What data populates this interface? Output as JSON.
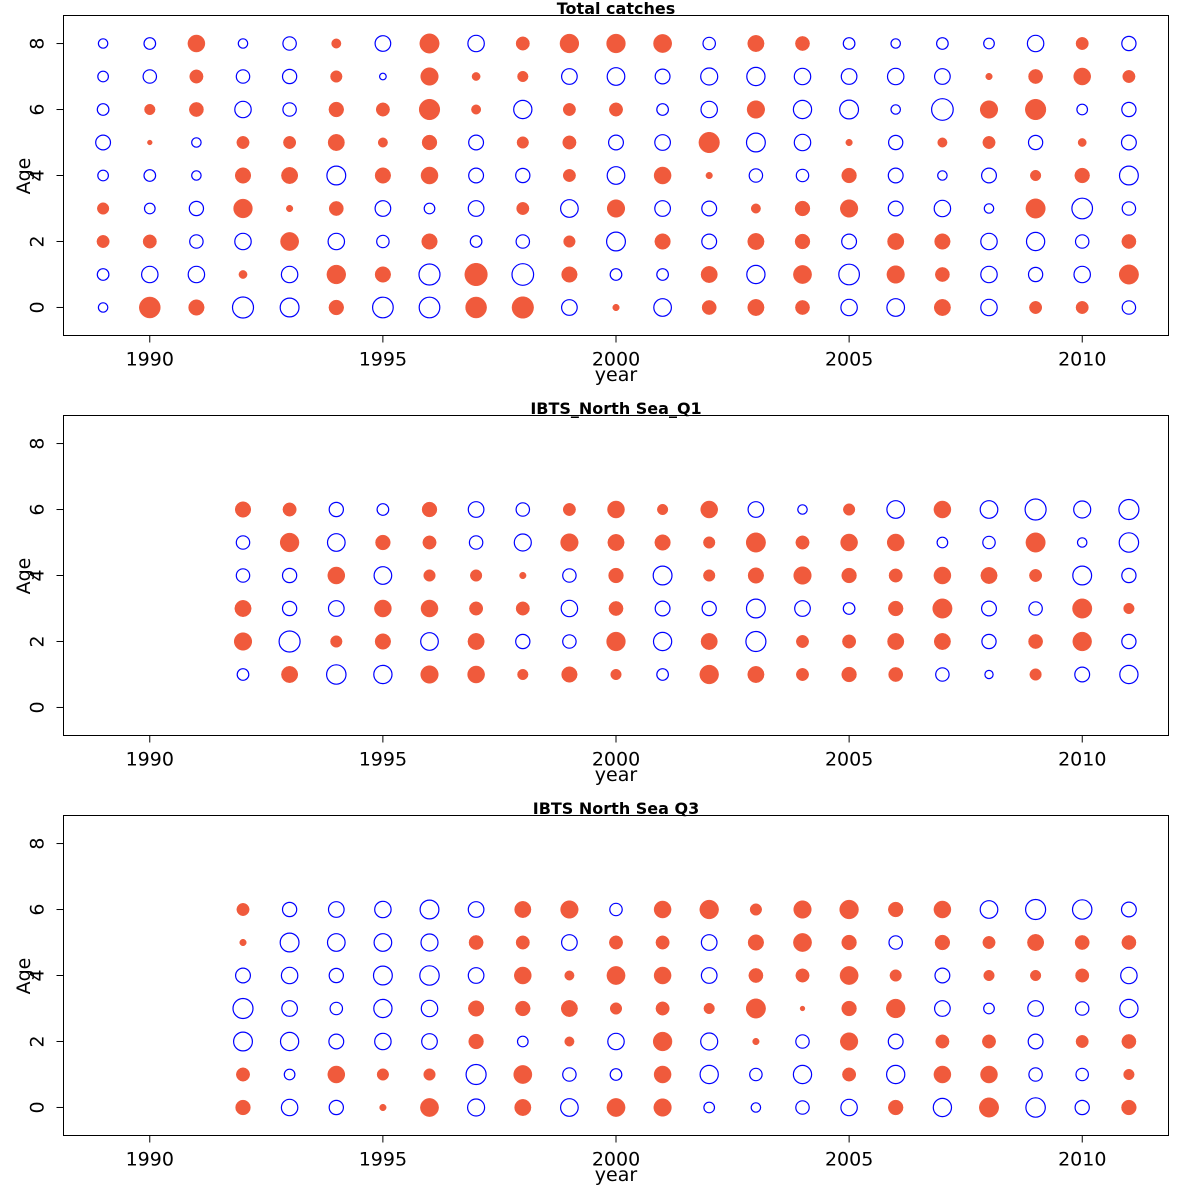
{
  "colors": {
    "positive": "#F05A3C",
    "negative": "#0000FF"
  },
  "chart_data": [
    {
      "type": "scatter",
      "title": "Total catches",
      "xlabel": "year",
      "ylabel": "Age",
      "xlim": [
        1988.15,
        2011.85
      ],
      "ylim": [
        -0.85,
        8.85
      ],
      "xticks": [
        1990,
        1995,
        2000,
        2005,
        2010
      ],
      "yticks": [
        0,
        2,
        4,
        6,
        8
      ],
      "x": [
        1989,
        1990,
        1991,
        1992,
        1993,
        1994,
        1995,
        1996,
        1997,
        1998,
        1999,
        2000,
        2001,
        2002,
        2003,
        2004,
        2005,
        2006,
        2007,
        2008,
        2009,
        2010,
        2011
      ],
      "ages": [
        0,
        1,
        2,
        3,
        4,
        5,
        6,
        7,
        8
      ],
      "residuals_by_age": [
        [
          -0.2,
          1.0,
          0.55,
          -1.0,
          -0.8,
          0.5,
          -0.95,
          -0.95,
          1.0,
          1.05,
          -0.55,
          0.1,
          -0.7,
          0.45,
          0.6,
          0.45,
          -0.6,
          -0.7,
          0.6,
          -0.6,
          0.35,
          0.35,
          -0.4
        ],
        [
          -0.3,
          -0.6,
          -0.6,
          0.15,
          -0.6,
          0.8,
          0.55,
          -1.0,
          1.15,
          -1.05,
          0.55,
          -0.3,
          -0.3,
          0.6,
          -0.75,
          0.75,
          -0.95,
          0.7,
          0.45,
          -0.6,
          -0.45,
          -0.6,
          0.85
        ],
        [
          0.35,
          0.4,
          -0.4,
          -0.6,
          0.75,
          -0.6,
          -0.35,
          0.55,
          -0.3,
          -0.4,
          0.3,
          -0.8,
          0.55,
          -0.5,
          0.6,
          0.5,
          -0.5,
          0.6,
          0.55,
          -0.6,
          -0.75,
          -0.4,
          0.45
        ],
        [
          0.3,
          -0.25,
          -0.45,
          0.8,
          0.1,
          0.45,
          -0.55,
          -0.25,
          -0.55,
          0.35,
          -0.7,
          0.7,
          -0.55,
          -0.5,
          0.2,
          0.5,
          0.7,
          -0.5,
          -0.6,
          -0.2,
          0.85,
          -0.95,
          -0.4
        ],
        [
          -0.25,
          -0.3,
          -0.2,
          0.55,
          0.6,
          -0.8,
          0.55,
          0.65,
          -0.5,
          -0.45,
          0.35,
          -0.7,
          0.65,
          0.1,
          -0.4,
          -0.35,
          0.5,
          -0.5,
          -0.2,
          -0.5,
          0.25,
          0.5,
          -0.8
        ],
        [
          -0.5,
          0.05,
          -0.2,
          0.35,
          0.35,
          0.6,
          0.2,
          0.5,
          -0.5,
          0.3,
          0.4,
          -0.5,
          -0.55,
          0.95,
          -0.8,
          -0.6,
          0.1,
          -0.45,
          0.2,
          0.35,
          -0.45,
          0.15,
          -0.5
        ],
        [
          -0.3,
          0.25,
          0.45,
          -0.6,
          -0.4,
          0.5,
          0.4,
          0.95,
          0.2,
          -0.75,
          0.35,
          0.4,
          -0.3,
          -0.6,
          0.7,
          -0.75,
          -0.8,
          -0.2,
          -1.05,
          0.7,
          0.95,
          -0.25,
          -0.45
        ],
        [
          -0.25,
          -0.4,
          0.4,
          -0.4,
          -0.45,
          0.3,
          -0.1,
          0.7,
          0.15,
          0.25,
          -0.55,
          -0.7,
          -0.5,
          -0.65,
          -0.75,
          -0.6,
          -0.55,
          -0.6,
          -0.55,
          0.1,
          0.45,
          0.65,
          0.35
        ],
        [
          -0.2,
          -0.3,
          0.65,
          -0.2,
          -0.4,
          0.2,
          -0.55,
          0.85,
          -0.6,
          0.4,
          0.8,
          0.8,
          0.75,
          -0.35,
          0.6,
          0.45,
          -0.3,
          -0.2,
          -0.3,
          -0.25,
          -0.6,
          0.35,
          -0.45
        ]
      ]
    },
    {
      "type": "scatter",
      "title": "IBTS_North Sea_Q1",
      "xlabel": "year",
      "ylabel": "Age",
      "xlim": [
        1988.15,
        2011.85
      ],
      "ylim": [
        -0.85,
        8.85
      ],
      "xticks": [
        1990,
        1995,
        2000,
        2005,
        2010
      ],
      "yticks": [
        0,
        2,
        4,
        6,
        8
      ],
      "x": [
        1992,
        1993,
        1994,
        1995,
        1996,
        1997,
        1998,
        1999,
        2000,
        2001,
        2002,
        2003,
        2004,
        2005,
        2006,
        2007,
        2008,
        2009,
        2010,
        2011
      ],
      "ages": [
        1,
        2,
        3,
        4,
        5,
        6
      ],
      "residuals_by_age": [
        [
          -0.3,
          0.6,
          -0.85,
          -0.75,
          0.7,
          0.65,
          0.25,
          0.55,
          0.25,
          -0.3,
          0.8,
          0.6,
          0.35,
          0.5,
          0.45,
          -0.4,
          -0.15,
          0.3,
          -0.5,
          -0.75
        ],
        [
          0.7,
          -1.0,
          0.3,
          0.55,
          -0.7,
          0.6,
          -0.45,
          -0.4,
          0.8,
          -0.75,
          0.6,
          -0.9,
          0.35,
          0.4,
          0.6,
          0.6,
          -0.45,
          0.45,
          0.8,
          -0.45
        ],
        [
          0.6,
          -0.45,
          -0.55,
          0.65,
          0.65,
          0.4,
          0.4,
          -0.6,
          0.45,
          -0.5,
          -0.45,
          -0.8,
          -0.55,
          -0.3,
          0.5,
          0.85,
          -0.5,
          -0.4,
          0.85,
          0.25
        ],
        [
          -0.4,
          -0.45,
          0.65,
          -0.7,
          0.3,
          0.3,
          0.1,
          -0.4,
          0.5,
          -0.8,
          0.3,
          0.55,
          0.7,
          0.5,
          0.4,
          0.65,
          0.6,
          0.35,
          -0.8,
          -0.45
        ],
        [
          -0.4,
          0.8,
          -0.7,
          0.5,
          0.4,
          -0.4,
          -0.65,
          0.7,
          0.6,
          0.55,
          0.3,
          0.85,
          0.4,
          0.65,
          0.65,
          -0.25,
          -0.35,
          0.85,
          -0.2,
          -0.85
        ],
        [
          0.55,
          0.4,
          -0.45,
          -0.3,
          0.5,
          -0.55,
          -0.4,
          0.35,
          0.65,
          0.25,
          0.65,
          -0.55,
          -0.2,
          0.3,
          -0.7,
          0.65,
          -0.7,
          -1.0,
          -0.65,
          -0.9
        ]
      ]
    },
    {
      "type": "scatter",
      "title": "IBTS North Sea Q3",
      "xlabel": "year",
      "ylabel": "Age",
      "xlim": [
        1988.15,
        2011.85
      ],
      "ylim": [
        -0.85,
        8.85
      ],
      "xticks": [
        1990,
        1995,
        2000,
        2005,
        2010
      ],
      "yticks": [
        0,
        2,
        4,
        6,
        8
      ],
      "x": [
        1992,
        1993,
        1994,
        1995,
        1996,
        1997,
        1998,
        1999,
        2000,
        2001,
        2002,
        2003,
        2004,
        2005,
        2006,
        2007,
        2008,
        2009,
        2010,
        2011
      ],
      "ages": [
        0,
        1,
        2,
        3,
        4,
        5,
        6
      ],
      "residuals_by_age": [
        [
          0.5,
          -0.6,
          -0.45,
          0.1,
          0.75,
          -0.65,
          0.6,
          -0.7,
          0.75,
          0.7,
          -0.25,
          -0.2,
          -0.4,
          -0.6,
          0.5,
          -0.75,
          0.85,
          -0.85,
          -0.45,
          0.5
        ],
        [
          0.4,
          -0.25,
          0.65,
          0.3,
          0.3,
          -0.9,
          0.75,
          -0.4,
          -0.3,
          0.65,
          -0.75,
          -0.35,
          -0.75,
          0.4,
          -0.75,
          0.65,
          0.65,
          -0.4,
          -0.35,
          0.25
        ],
        [
          -0.8,
          -0.75,
          -0.5,
          -0.6,
          -0.55,
          0.5,
          -0.25,
          0.2,
          -0.6,
          0.8,
          -0.65,
          0.1,
          -0.4,
          0.7,
          -0.5,
          0.4,
          0.4,
          -0.5,
          0.35,
          0.45
        ],
        [
          -0.9,
          -0.55,
          -0.35,
          -0.75,
          -0.6,
          0.55,
          0.5,
          0.6,
          0.3,
          0.4,
          0.25,
          0.85,
          0.05,
          0.5,
          0.8,
          -0.55,
          -0.25,
          -0.55,
          -0.4,
          -0.75
        ],
        [
          -0.5,
          -0.6,
          -0.45,
          -0.8,
          -0.85,
          -0.55,
          0.65,
          0.2,
          0.75,
          0.65,
          -0.55,
          0.45,
          0.4,
          0.75,
          0.3,
          -0.5,
          0.25,
          0.25,
          0.4,
          -0.6
        ],
        [
          0.1,
          -0.8,
          -0.7,
          -0.7,
          -0.65,
          0.45,
          0.4,
          -0.55,
          0.4,
          0.4,
          -0.55,
          0.55,
          0.75,
          0.5,
          -0.4,
          0.5,
          0.35,
          0.6,
          0.45,
          0.45
        ],
        [
          0.35,
          -0.45,
          -0.55,
          -0.6,
          -0.8,
          -0.55,
          0.6,
          0.7,
          -0.35,
          0.65,
          0.8,
          0.3,
          0.7,
          0.8,
          0.5,
          0.65,
          -0.7,
          -0.9,
          -0.85,
          -0.5
        ]
      ]
    }
  ]
}
